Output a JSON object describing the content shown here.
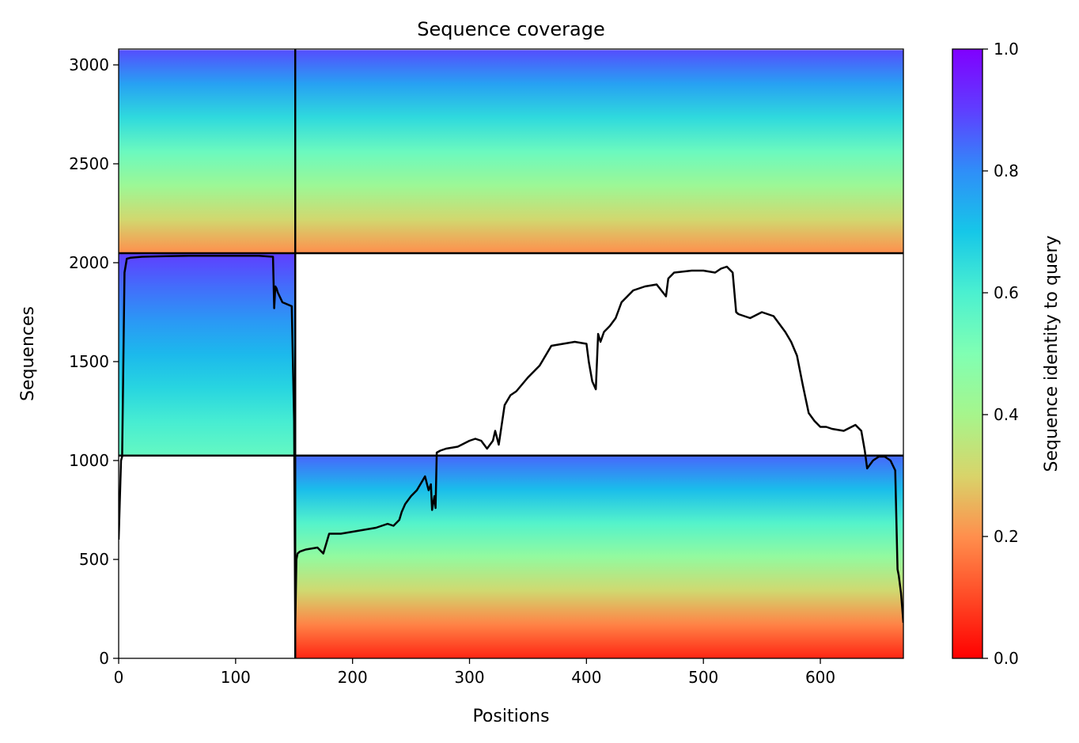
{
  "chart_data": {
    "type": "heatmap",
    "title": "Sequence coverage",
    "xlabel": "Positions",
    "ylabel": "Sequences",
    "xlim": [
      0,
      671
    ],
    "ylim": [
      0,
      3080
    ],
    "xticks": [
      0,
      100,
      200,
      300,
      400,
      500,
      600
    ],
    "yticks": [
      0,
      500,
      1000,
      1500,
      2000,
      2500,
      3000
    ],
    "colorbar": {
      "label": "Sequence identity to query",
      "range": [
        0,
        1
      ],
      "ticks": [
        "0.0",
        "0.2",
        "0.4",
        "0.6",
        "0.8",
        "1.0"
      ],
      "colormap": "rainbow"
    },
    "blocks": [
      {
        "x_range": [
          0,
          151
        ],
        "y_range": [
          1025,
          2048
        ],
        "identity_top": 0.9,
        "identity_bottom": 0.55
      },
      {
        "x_range": [
          151,
          671
        ],
        "y_range": [
          0,
          1025
        ],
        "identity_top": 0.85,
        "identity_bottom": 0.05
      },
      {
        "x_range": [
          0,
          151
        ],
        "y_range": [
          2048,
          3075
        ],
        "identity_top": 0.88,
        "identity_bottom": 0.2
      },
      {
        "x_range": [
          151,
          671
        ],
        "y_range": [
          2048,
          3075
        ],
        "identity_top": 0.88,
        "identity_bottom": 0.2
      }
    ],
    "block_dividers": {
      "x": [
        151
      ],
      "y": [
        1025,
        2048
      ]
    },
    "coverage_line": {
      "name": "coverage",
      "color": "#000000",
      "x": [
        0,
        2,
        3,
        5,
        7,
        10,
        20,
        40,
        60,
        80,
        100,
        120,
        132,
        133,
        134,
        135,
        136,
        140,
        148,
        150,
        151,
        152,
        153,
        155,
        160,
        170,
        175,
        180,
        190,
        200,
        210,
        220,
        230,
        235,
        240,
        242,
        245,
        250,
        255,
        260,
        262,
        265,
        267,
        268,
        270,
        271,
        272,
        275,
        280,
        290,
        300,
        305,
        310,
        315,
        320,
        322,
        325,
        330,
        335,
        340,
        350,
        360,
        370,
        380,
        390,
        400,
        402,
        405,
        408,
        410,
        412,
        415,
        420,
        425,
        430,
        440,
        450,
        460,
        468,
        470,
        475,
        490,
        500,
        510,
        515,
        520,
        525,
        528,
        530,
        540,
        550,
        560,
        570,
        575,
        580,
        585,
        590,
        595,
        600,
        605,
        610,
        620,
        630,
        635,
        638,
        640,
        645,
        650,
        655,
        660,
        664,
        666,
        667,
        669,
        671
      ],
      "y": [
        600,
        1000,
        1020,
        1950,
        2020,
        2025,
        2030,
        2033,
        2035,
        2035,
        2035,
        2035,
        2030,
        1770,
        1880,
        1870,
        1850,
        1800,
        1780,
        1200,
        150,
        500,
        530,
        540,
        550,
        560,
        530,
        630,
        630,
        640,
        650,
        660,
        680,
        670,
        700,
        740,
        780,
        820,
        850,
        900,
        920,
        850,
        880,
        750,
        820,
        760,
        1040,
        1050,
        1060,
        1070,
        1100,
        1110,
        1100,
        1060,
        1100,
        1150,
        1080,
        1280,
        1330,
        1350,
        1420,
        1480,
        1580,
        1590,
        1600,
        1590,
        1500,
        1400,
        1360,
        1640,
        1600,
        1650,
        1680,
        1720,
        1800,
        1860,
        1880,
        1890,
        1830,
        1920,
        1950,
        1960,
        1960,
        1950,
        1970,
        1980,
        1950,
        1750,
        1740,
        1720,
        1750,
        1730,
        1650,
        1600,
        1530,
        1380,
        1240,
        1200,
        1170,
        1170,
        1160,
        1150,
        1180,
        1150,
        1050,
        960,
        1000,
        1020,
        1020,
        1000,
        950,
        450,
        420,
        330,
        180
      ]
    }
  }
}
